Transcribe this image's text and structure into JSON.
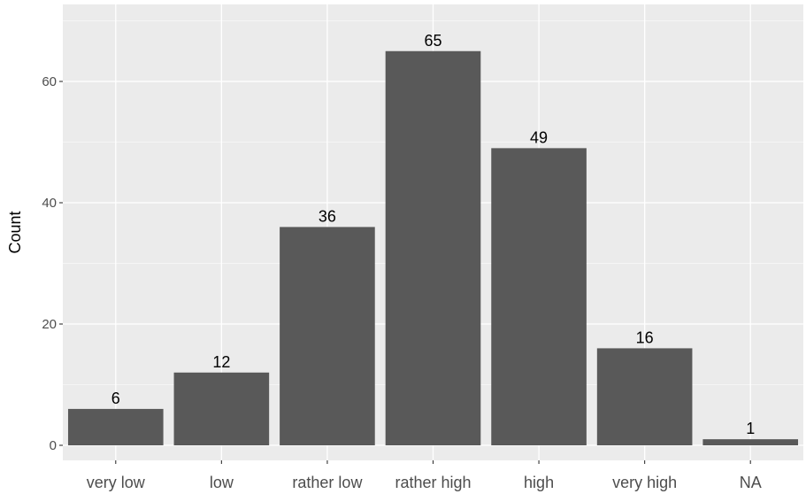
{
  "chart_data": {
    "type": "bar",
    "categories": [
      "very low",
      "low",
      "rather low",
      "rather high",
      "high",
      "very high",
      "NA"
    ],
    "values": [
      6,
      12,
      36,
      65,
      49,
      16,
      1
    ],
    "data_labels": [
      "6",
      "12",
      "36",
      "65",
      "49",
      "16",
      "1"
    ],
    "title": "",
    "xlabel": "",
    "ylabel": "Count",
    "ylim": [
      0,
      71
    ],
    "yticks": [
      0,
      20,
      40,
      60
    ],
    "ytick_labels": [
      "0",
      "20",
      "40",
      "60"
    ],
    "grid": true,
    "legend": "none",
    "colors": {
      "panel_background": "#ebebeb",
      "grid_major": "#ffffff",
      "bar_fill": "#595959"
    }
  }
}
